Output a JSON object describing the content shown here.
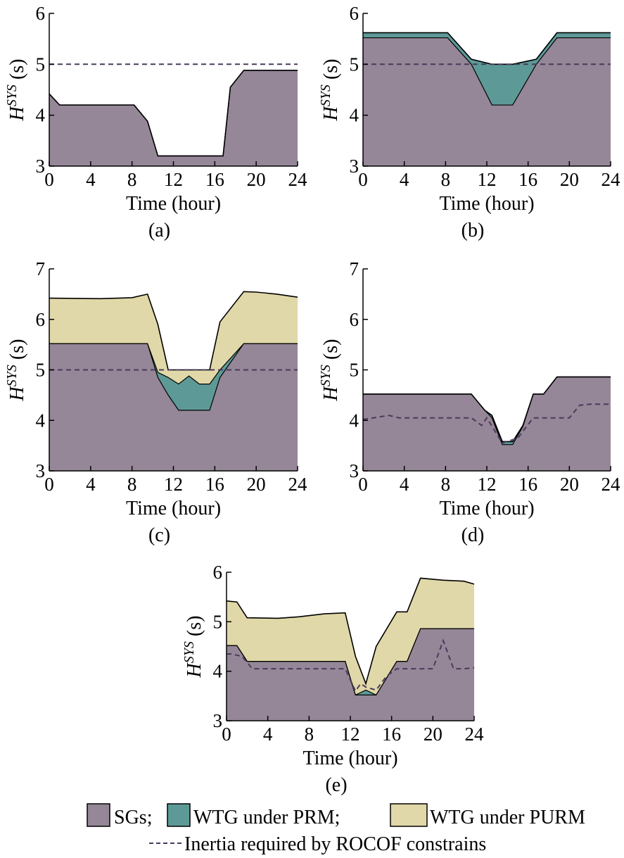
{
  "colors": {
    "sg": "#958797",
    "prm": "#5d9a97",
    "purm": "#e0d8a8",
    "required": "#4a3a5c",
    "outline": "#000000"
  },
  "legend": {
    "sg": "SGs;",
    "prm": "WTG under PRM;",
    "purm": "WTG under PURM",
    "required": "Inertia required by ROCOF constrains"
  },
  "chart_data": [
    {
      "type": "area",
      "panel_label": "(a)",
      "xlabel": "Time (hour)",
      "ylabel_main": "H",
      "ylabel_sup": "SYS",
      "ylabel_unit": " (s)",
      "xlim": [
        0,
        24
      ],
      "ylim": [
        3,
        6
      ],
      "xticks": [
        "0",
        "4",
        "8",
        "12",
        "16",
        "20",
        "24"
      ],
      "yticks": [
        "3",
        "4",
        "5",
        "6"
      ],
      "grid": false,
      "x": [
        0,
        1,
        8.2,
        9.5,
        10.5,
        16.8,
        17.5,
        18.8,
        24
      ],
      "sg": [
        4.42,
        4.2,
        4.2,
        3.88,
        3.2,
        3.2,
        4.55,
        4.88,
        4.88
      ],
      "prm_top": [
        4.42,
        4.2,
        4.2,
        3.88,
        3.2,
        3.2,
        4.55,
        4.88,
        4.88
      ],
      "purm_top": [
        4.42,
        4.2,
        4.2,
        3.88,
        3.2,
        3.2,
        4.55,
        4.88,
        4.88
      ],
      "required_x": [
        0,
        24
      ],
      "required": [
        5.0,
        5.0
      ]
    },
    {
      "type": "area",
      "panel_label": "(b)",
      "xlabel": "Time (hour)",
      "ylabel_main": "H",
      "ylabel_sup": "SYS",
      "ylabel_unit": " (s)",
      "xlim": [
        0,
        24
      ],
      "ylim": [
        3,
        6
      ],
      "xticks": [
        "0",
        "4",
        "8",
        "12",
        "16",
        "20",
        "24"
      ],
      "yticks": [
        "3",
        "4",
        "5",
        "6"
      ],
      "grid": false,
      "x": [
        0,
        8.2,
        10.5,
        12.5,
        14.5,
        16.8,
        18.8,
        24
      ],
      "sg": [
        5.52,
        5.52,
        5.0,
        4.2,
        4.2,
        5.0,
        5.52,
        5.52
      ],
      "prm_top": [
        5.62,
        5.62,
        5.1,
        5.0,
        5.0,
        5.1,
        5.62,
        5.62
      ],
      "purm_top": [
        5.62,
        5.62,
        5.1,
        5.0,
        5.0,
        5.1,
        5.62,
        5.62
      ],
      "required_x": [
        0,
        24
      ],
      "required": [
        5.0,
        5.0
      ]
    },
    {
      "type": "area",
      "panel_label": "(c)",
      "xlabel": "Time (hour)",
      "ylabel_main": "H",
      "ylabel_sup": "SYS",
      "ylabel_unit": " (s)",
      "xlim": [
        0,
        24
      ],
      "ylim": [
        3,
        7
      ],
      "xticks": [
        "0",
        "4",
        "8",
        "12",
        "16",
        "20",
        "24"
      ],
      "yticks": [
        "3",
        "4",
        "5",
        "6",
        "7"
      ],
      "grid": false,
      "x": [
        0,
        5,
        8,
        9.5,
        10.5,
        11.5,
        12.5,
        13.5,
        14.5,
        15.5,
        16.5,
        18.8,
        20,
        22,
        24
      ],
      "sg": [
        5.52,
        5.52,
        5.52,
        5.52,
        4.85,
        4.5,
        4.2,
        4.2,
        4.2,
        4.2,
        4.85,
        5.52,
        5.52,
        5.52,
        5.52
      ],
      "prm_top": [
        5.52,
        5.52,
        5.52,
        5.52,
        4.95,
        4.85,
        4.72,
        4.88,
        4.72,
        4.72,
        5.0,
        5.52,
        5.52,
        5.52,
        5.52
      ],
      "purm_top": [
        6.42,
        6.41,
        6.43,
        6.5,
        5.9,
        5.0,
        5.0,
        5.0,
        5.0,
        5.0,
        5.95,
        6.55,
        6.54,
        6.5,
        6.44
      ],
      "required_x": [
        0,
        24
      ],
      "required": [
        5.0,
        5.0
      ]
    },
    {
      "type": "area",
      "panel_label": "(d)",
      "xlabel": "Time (hour)",
      "ylabel_main": "H",
      "ylabel_sup": "SYS",
      "ylabel_unit": " (s)",
      "xlim": [
        0,
        24
      ],
      "ylim": [
        3,
        7
      ],
      "xticks": [
        "0",
        "4",
        "8",
        "12",
        "16",
        "20",
        "24"
      ],
      "yticks": [
        "3",
        "4",
        "5",
        "6",
        "7"
      ],
      "grid": false,
      "x": [
        0,
        10.5,
        11.8,
        12.5,
        13.5,
        14.5,
        15.5,
        16.5,
        17.5,
        18.8,
        24
      ],
      "sg": [
        4.52,
        4.52,
        4.2,
        4.05,
        3.52,
        3.52,
        3.88,
        4.52,
        4.52,
        4.86,
        4.86
      ],
      "prm_top": [
        4.52,
        4.52,
        4.2,
        4.1,
        3.58,
        3.58,
        3.9,
        4.52,
        4.52,
        4.86,
        4.86
      ],
      "purm_top": [
        4.52,
        4.52,
        4.2,
        4.1,
        3.58,
        3.58,
        3.9,
        4.52,
        4.52,
        4.86,
        4.86
      ],
      "required_x": [
        0,
        1,
        2.5,
        3.5,
        10.5,
        11.5,
        12,
        13.5,
        15,
        16.5,
        20,
        21,
        22,
        24
      ],
      "required": [
        4.02,
        4.05,
        4.1,
        4.05,
        4.05,
        3.9,
        4.05,
        3.55,
        3.65,
        4.05,
        4.05,
        4.3,
        4.32,
        4.32
      ]
    },
    {
      "type": "area",
      "panel_label": "(e)",
      "xlabel": "Time (hour)",
      "ylabel_main": "H",
      "ylabel_sup": "SYS",
      "ylabel_unit": " (s)",
      "xlim": [
        0,
        24
      ],
      "ylim": [
        3,
        6
      ],
      "xticks": [
        "0",
        "4",
        "8",
        "12",
        "16",
        "20",
        "24"
      ],
      "yticks": [
        "3",
        "4",
        "5",
        "6"
      ],
      "grid": false,
      "x": [
        0,
        1,
        2,
        5,
        7,
        9.5,
        11.5,
        12.5,
        13.5,
        14.5,
        16.5,
        17.5,
        18.8,
        21,
        23,
        24
      ],
      "sg": [
        4.52,
        4.52,
        4.2,
        4.2,
        4.2,
        4.2,
        4.2,
        3.52,
        3.52,
        3.52,
        4.2,
        4.2,
        4.86,
        4.86,
        4.86,
        4.86
      ],
      "prm_top": [
        4.52,
        4.52,
        4.2,
        4.2,
        4.2,
        4.2,
        4.2,
        3.52,
        3.62,
        3.52,
        4.2,
        4.2,
        4.86,
        4.86,
        4.86,
        4.86
      ],
      "purm_top": [
        5.42,
        5.4,
        5.08,
        5.07,
        5.1,
        5.16,
        5.18,
        4.3,
        3.75,
        4.5,
        5.2,
        5.2,
        5.88,
        5.84,
        5.82,
        5.76
      ],
      "required_x": [
        0,
        0.5,
        1.5,
        2.5,
        10.5,
        11.5,
        12.5,
        13,
        13.5,
        14.5,
        15.5,
        16.5,
        18.5,
        20,
        21,
        22,
        23,
        24
      ],
      "required": [
        4.35,
        4.35,
        4.3,
        4.05,
        4.05,
        4.05,
        3.6,
        3.75,
        3.68,
        3.62,
        3.9,
        4.05,
        4.05,
        4.05,
        4.62,
        4.05,
        4.05,
        4.07
      ]
    }
  ]
}
